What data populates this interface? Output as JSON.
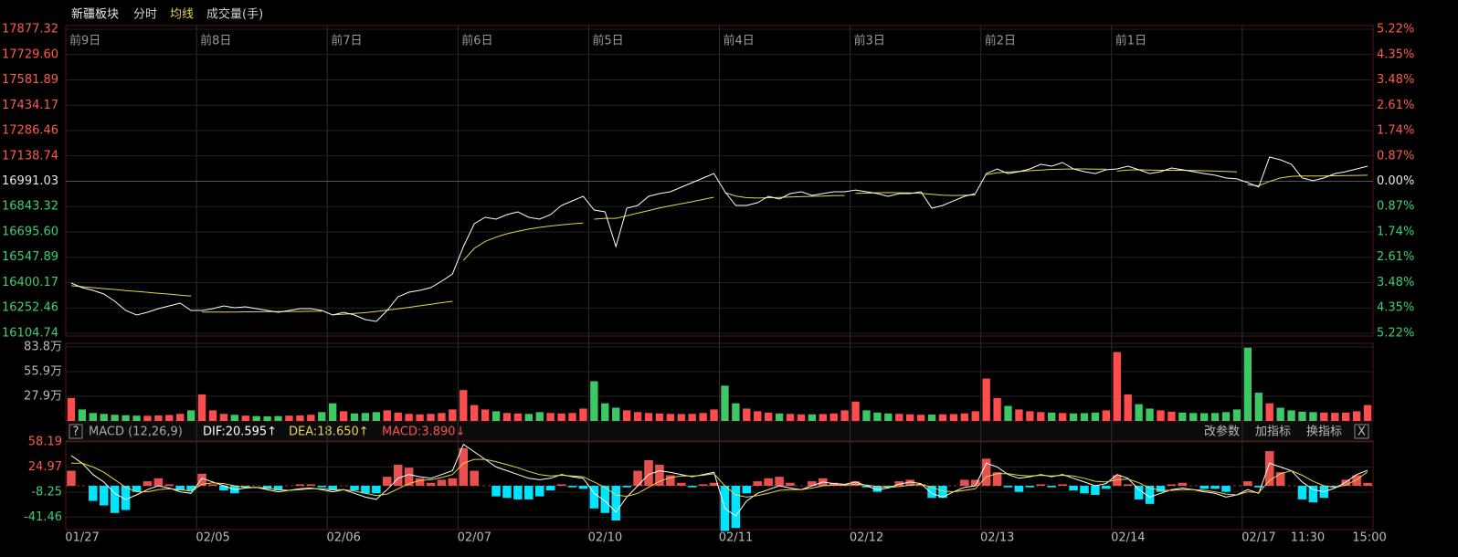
{
  "header": {
    "title": "新疆板块",
    "tabs": [
      "分时",
      "均线",
      "成交量(手)"
    ]
  },
  "price_axis": {
    "ylim": [
      16104.74,
      17877.32
    ],
    "left_ticks": [
      17877.32,
      {
        "value": 17729.6,
        "label": "17729.60"
      },
      17581.89,
      17434.17,
      17286.46,
      17138.74,
      16991.03,
      16843.32,
      {
        "value": 16695.6,
        "label": "16695.60"
      },
      16547.89,
      16400.17,
      16252.46,
      16104.74
    ],
    "base_tick": 6,
    "right_ticks": [
      "5.22%",
      "4.35%",
      "3.48%",
      "2.61%",
      "1.74%",
      "0.87%",
      "0.00%",
      "0.87%",
      "1.74%",
      "2.61%",
      "3.48%",
      "4.35%",
      "5.22%"
    ]
  },
  "day_labels": [
    "前9日",
    "前8日",
    "前7日",
    "前6日",
    "前5日",
    "前4日",
    "前3日",
    "前2日",
    "前1日"
  ],
  "volume_axis": {
    "ylim": [
      0,
      838000
    ],
    "ticks": [
      {
        "value": 838000,
        "label": "83.8万"
      },
      {
        "value": 559000,
        "label": "55.9万"
      },
      {
        "value": 279000,
        "label": "27.9万"
      }
    ]
  },
  "macd_header": {
    "help": "?",
    "name": "MACD (12,26,9)",
    "dif": "DIF:20.595↑",
    "dea": "DEA:18.650↑",
    "macd": "MACD:3.890↓",
    "buttons": [
      "改参数",
      "加指标",
      "换指标"
    ],
    "close": "X"
  },
  "macd_axis": {
    "ylim": [
      -58.07,
      59.38
    ],
    "ticks": [
      58.19,
      24.97,
      -8.25,
      -41.46
    ]
  },
  "dates": [
    "01/27",
    "02/05",
    "02/06",
    "02/07",
    "02/10",
    "02/11",
    "02/12",
    "02/13",
    "02/14",
    "02/17"
  ],
  "times": [
    "11:30",
    "15:00"
  ],
  "colors": {
    "price": "#ffffff",
    "avg": "#e8d44d",
    "up": "#ff4d4d",
    "down": "#3cc864",
    "hist_up": "#e85050",
    "hist_down": "#00e5ff",
    "dif": "#ffffff",
    "dea": "#e8d44d"
  },
  "days": [
    {
      "price": [
        16397.5,
        16370.9,
        16354.9,
        16333.6,
        16291.0,
        16237.8,
        16211.2,
        16227.2,
        16248.4,
        16264.4,
        16280.4,
        16237.8
      ],
      "avg": [
        16382,
        16376,
        16371,
        16365,
        16360,
        16354,
        16349,
        16344,
        16338,
        16333,
        16327,
        16322
      ],
      "volume": [
        260000,
        130000,
        90000,
        80000,
        70000,
        65000,
        60000,
        58000,
        62000,
        68000,
        80000,
        120000
      ],
      "dif": [
        40,
        30,
        15,
        5,
        -10,
        -18,
        -12,
        -5,
        0,
        -3,
        -8,
        -10
      ],
      "dea": [
        30,
        30,
        25,
        18,
        8,
        -2,
        -8,
        -8,
        -5,
        -4,
        -5,
        -7
      ],
      "macd": [
        20,
        0,
        -20,
        -26,
        -36,
        -32,
        -8,
        6,
        10,
        2,
        -6,
        -6
      ]
    },
    {
      "price": [
        16237.8,
        16248.4,
        16264.4,
        16253.8,
        16259.1,
        16248.4,
        16237.8,
        16227.2,
        16237.8,
        16248.4,
        16248.4,
        16237.8
      ],
      "avg": [
        16228,
        16228,
        16229,
        16229,
        16230,
        16230,
        16231,
        16231,
        16232,
        16232,
        16233,
        16233
      ],
      "volume": [
        300000,
        120000,
        80000,
        70000,
        60000,
        55000,
        52000,
        55000,
        60000,
        62000,
        70000,
        100000
      ],
      "dif": [
        10,
        5,
        0,
        -5,
        -3,
        -2,
        -5,
        -8,
        -6,
        -4,
        -3,
        -5
      ],
      "dea": [
        2,
        4,
        3,
        0,
        -2,
        -2,
        -3,
        -5,
        -6,
        -5,
        -4,
        -4
      ],
      "macd": [
        16,
        2,
        -6,
        -10,
        -2,
        0,
        -4,
        -6,
        0,
        2,
        2,
        -2
      ]
    },
    {
      "price": [
        16211.2,
        16227.2,
        16211.2,
        16184.6,
        16174.0,
        16237.8,
        16317.7,
        16344.3,
        16354.9,
        16370.9,
        16408.2,
        16450.7
      ],
      "avg": [
        16212,
        16216,
        16220,
        16225,
        16232,
        16240,
        16248,
        16256,
        16265,
        16274,
        16283,
        16291
      ],
      "volume": [
        200000,
        110000,
        85000,
        90000,
        100000,
        120000,
        95000,
        80000,
        75000,
        80000,
        90000,
        130000
      ],
      "dif": [
        -8,
        -5,
        -10,
        -15,
        -18,
        -5,
        10,
        15,
        12,
        10,
        15,
        20
      ],
      "dea": [
        -5,
        -5,
        -7,
        -10,
        -13,
        -11,
        -4,
        3,
        7,
        8,
        11,
        15
      ],
      "macd": [
        -6,
        0,
        -6,
        -10,
        -10,
        12,
        28,
        24,
        10,
        4,
        8,
        10
      ]
    },
    {
      "price": [
        16610.4,
        16743.5,
        16780.8,
        16770.1,
        16796.7,
        16812.7,
        16780.8,
        16770.1,
        16796.7,
        16849.9,
        16876.6,
        16903.2
      ],
      "avg": [
        16530,
        16600,
        16640,
        16665,
        16685,
        16700,
        16712,
        16722,
        16730,
        16737,
        16743,
        16748
      ],
      "volume": [
        350000,
        180000,
        130000,
        110000,
        90000,
        85000,
        80000,
        100000,
        90000,
        85000,
        90000,
        140000
      ],
      "dif": [
        55,
        45,
        35,
        25,
        20,
        15,
        10,
        8,
        10,
        15,
        12,
        10
      ],
      "dea": [
        30,
        35,
        35,
        32,
        28,
        24,
        19,
        15,
        13,
        14,
        13,
        12
      ],
      "macd": [
        50,
        20,
        0,
        -14,
        -16,
        -18,
        -18,
        -14,
        -6,
        2,
        -2,
        -4
      ]
    },
    {
      "price": [
        16823.3,
        16812.7,
        16610.4,
        16834.0,
        16849.9,
        16903.2,
        16919.1,
        16929.8,
        16956.4,
        16983.0,
        17009.7,
        17036.3
      ],
      "avg": [
        16770,
        16775,
        16775,
        16790,
        16805,
        16820,
        16835,
        16848,
        16860,
        16872,
        16885,
        16898
      ],
      "volume": [
        450000,
        200000,
        150000,
        120000,
        100000,
        90000,
        85000,
        80000,
        78000,
        80000,
        90000,
        130000
      ],
      "dif": [
        -10,
        -20,
        -35,
        -15,
        0,
        15,
        20,
        18,
        15,
        12,
        15,
        18
      ],
      "dea": [
        5,
        -2,
        -12,
        -14,
        -10,
        -2,
        6,
        11,
        13,
        13,
        14,
        16
      ],
      "macd": [
        -30,
        -36,
        -46,
        -2,
        20,
        34,
        28,
        14,
        4,
        -2,
        2,
        4
      ]
    },
    {
      "price": [
        16929.8,
        16849.9,
        16849.9,
        16866.0,
        16903.2,
        16887.3,
        16919.1,
        16929.8,
        16908.5,
        16919.1,
        16929.8,
        16929.8
      ],
      "avg": [
        16925,
        16905,
        16895,
        16893,
        16895,
        16897,
        16899,
        16901,
        16903,
        16905,
        16907,
        16908
      ],
      "volume": [
        400000,
        200000,
        140000,
        110000,
        95000,
        85000,
        80000,
        75000,
        75000,
        78000,
        85000,
        120000
      ],
      "dif": [
        -30,
        -40,
        -20,
        -10,
        -5,
        0,
        -3,
        -5,
        0,
        5,
        3,
        2
      ],
      "dea": [
        0,
        -12,
        -15,
        -13,
        -10,
        -6,
        -5,
        -5,
        -3,
        0,
        1,
        1
      ],
      "macd": [
        -60,
        -56,
        -10,
        6,
        10,
        12,
        4,
        0,
        6,
        10,
        4,
        2
      ]
    },
    {
      "price": [
        16940,
        16930,
        16919,
        16903,
        16919,
        16919,
        16930,
        16834,
        16850,
        16877,
        16903,
        16919
      ],
      "avg": [
        16920,
        16922,
        16924,
        16925,
        16924,
        16923,
        16920,
        16915,
        16910,
        16908,
        16909,
        16911
      ],
      "volume": [
        220000,
        120000,
        95000,
        85000,
        80000,
        75000,
        70000,
        72000,
        75000,
        78000,
        85000,
        110000
      ],
      "dif": [
        5,
        0,
        -5,
        -3,
        2,
        5,
        3,
        -10,
        -15,
        -8,
        -2,
        0
      ],
      "dea": [
        2,
        1,
        -1,
        -2,
        -1,
        1,
        2,
        -2,
        -7,
        -8,
        -6,
        -4
      ],
      "macd": [
        6,
        -2,
        -8,
        -2,
        6,
        8,
        2,
        -16,
        -16,
        0,
        8,
        8
      ]
    },
    {
      "price": [
        17036,
        17063,
        17036,
        17047,
        17063,
        17090,
        17079,
        17100,
        17063,
        17047,
        17036,
        17058
      ],
      "avg": [
        17030,
        17040,
        17045,
        17048,
        17052,
        17056,
        17060,
        17062,
        17063,
        17063,
        17062,
        17062
      ],
      "volume": [
        480000,
        260000,
        170000,
        130000,
        110000,
        100000,
        95000,
        90000,
        85000,
        88000,
        95000,
        120000
      ],
      "dif": [
        30,
        25,
        15,
        10,
        12,
        15,
        12,
        15,
        10,
        5,
        0,
        3
      ],
      "dea": [
        12,
        16,
        16,
        14,
        13,
        14,
        13,
        14,
        13,
        10,
        6,
        5
      ],
      "macd": [
        36,
        18,
        -2,
        -8,
        -2,
        2,
        -2,
        2,
        -6,
        -10,
        -12,
        -4
      ]
    },
    {
      "price": [
        17063,
        17079,
        17058,
        17036,
        17047,
        17068,
        17058,
        17047,
        17036,
        17026,
        17010,
        17005
      ],
      "avg": [
        17050,
        17056,
        17058,
        17056,
        17055,
        17055,
        17055,
        17054,
        17052,
        17050,
        17048,
        17046
      ],
      "volume": [
        780000,
        300000,
        190000,
        140000,
        120000,
        105000,
        95000,
        90000,
        88000,
        90000,
        100000,
        130000
      ],
      "dif": [
        15,
        10,
        -5,
        -15,
        -10,
        -5,
        -3,
        -5,
        -8,
        -10,
        -15,
        -12
      ],
      "dea": [
        8,
        9,
        4,
        -3,
        -6,
        -6,
        -5,
        -5,
        -6,
        -8,
        -11,
        -12
      ],
      "macd": [
        14,
        2,
        -18,
        -24,
        -8,
        2,
        4,
        0,
        -4,
        -4,
        -8,
        0
      ]
    },
    {
      "price": [
        16983,
        16957,
        17132,
        17116,
        17090,
        17010,
        16994,
        17010,
        17036,
        17047,
        17063,
        17079
      ],
      "avg": [
        16970,
        16965,
        16990,
        17010,
        17020,
        17022,
        17022,
        17022,
        17023,
        17024,
        17025,
        17026
      ],
      "volume": [
        830000,
        320000,
        200000,
        150000,
        120000,
        105000,
        100000,
        95000,
        92000,
        95000,
        110000,
        180000
      ],
      "dif": [
        -5,
        -10,
        30,
        25,
        20,
        5,
        -5,
        -8,
        -3,
        5,
        15,
        20.6
      ],
      "dea": [
        -8,
        -9,
        7,
        16,
        20,
        14,
        6,
        0,
        -2,
        1,
        8,
        18.65
      ],
      "macd": [
        6,
        -2,
        46,
        18,
        0,
        -18,
        -22,
        -16,
        -2,
        8,
        14,
        3.9
      ]
    }
  ]
}
